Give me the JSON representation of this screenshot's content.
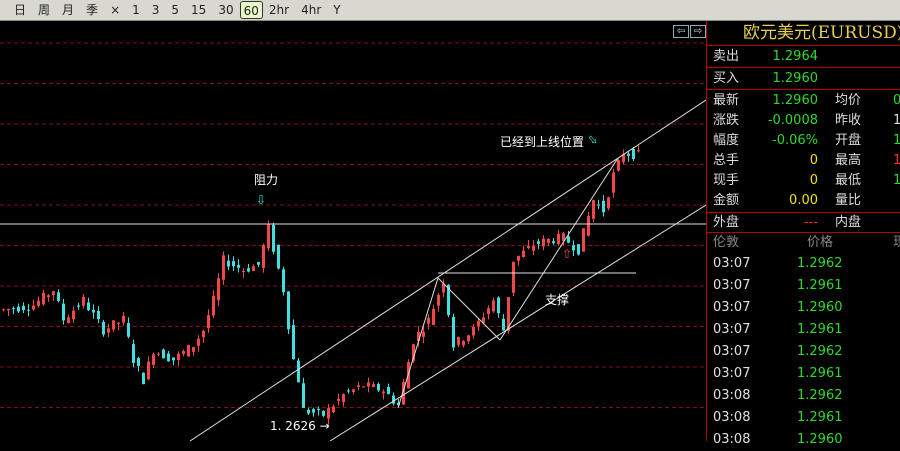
{
  "toolbar": {
    "items": [
      "日",
      "周",
      "月",
      "季",
      "×",
      "1",
      "3",
      "5",
      "15",
      "30",
      "60",
      "2hr",
      "4hr",
      "Y"
    ],
    "active": "60"
  },
  "nav": {
    "left": "⇦",
    "right": "⇨"
  },
  "annotations": {
    "resistance": "阻力",
    "at_upper_line": "已经到上线位置",
    "support": "支撑",
    "low_label": "1. 2626"
  },
  "panel": {
    "title": "欧元美元(EURUSD)",
    "sell": {
      "label": "卖出",
      "value": "1.2964"
    },
    "buy": {
      "label": "买入",
      "value": "1.2960"
    },
    "stats": [
      {
        "label": "最新",
        "value": "1.2960",
        "label2": "均价",
        "value2": "0"
      },
      {
        "label": "涨跌",
        "value": "-0.0008",
        "label2": "昨收",
        "value2": "1"
      },
      {
        "label": "幅度",
        "value": "-0.06%",
        "label2": "开盘",
        "value2": "1"
      },
      {
        "label": "总手",
        "value": "0",
        "label2": "最高",
        "value2": "1"
      },
      {
        "label": "现手",
        "value": "0",
        "label2": "最低",
        "value2": "1"
      },
      {
        "label": "金额",
        "value": "0.00",
        "label2": "量比",
        "value2": ""
      }
    ],
    "outer": {
      "label": "外盘",
      "value": "---",
      "label2": "内盘"
    },
    "ticks_header": {
      "time": "伦敦",
      "price": "价格",
      "vol": "现"
    },
    "ticks": [
      {
        "time": "03:07",
        "price": "1.2962"
      },
      {
        "time": "03:07",
        "price": "1.2961"
      },
      {
        "time": "03:07",
        "price": "1.2960"
      },
      {
        "time": "03:07",
        "price": "1.2961"
      },
      {
        "time": "03:07",
        "price": "1.2962"
      },
      {
        "time": "03:07",
        "price": "1.2961"
      },
      {
        "time": "03:08",
        "price": "1.2962"
      },
      {
        "time": "03:08",
        "price": "1.2961"
      },
      {
        "time": "03:08",
        "price": "1.2960"
      }
    ]
  },
  "chart_data": {
    "type": "candlestick",
    "period": "60",
    "low_marked": 1.2626,
    "last": 1.296,
    "path_keypoints": [
      [
        0,
        1.2767
      ],
      [
        6,
        1.2773
      ],
      [
        10,
        1.2792
      ],
      [
        12,
        1.2755
      ],
      [
        16,
        1.2779
      ],
      [
        20,
        1.2742
      ],
      [
        24,
        1.2755
      ],
      [
        26,
        1.2705
      ],
      [
        28,
        1.268
      ],
      [
        30,
        1.2717
      ],
      [
        34,
        1.2705
      ],
      [
        38,
        1.2723
      ],
      [
        40,
        1.2742
      ],
      [
        42,
        1.2779
      ],
      [
        44,
        1.2829
      ],
      [
        48,
        1.2817
      ],
      [
        51,
        1.2823
      ],
      [
        53,
        1.2869
      ],
      [
        56,
        1.2792
      ],
      [
        58,
        1.2705
      ],
      [
        59,
        1.268
      ],
      [
        60,
        1.2642
      ],
      [
        64,
        1.2636
      ],
      [
        68,
        1.2661
      ],
      [
        72,
        1.2673
      ],
      [
        76,
        1.2667
      ],
      [
        79,
        1.2648
      ],
      [
        82,
        1.2729
      ],
      [
        85,
        1.2754
      ],
      [
        88,
        1.2804
      ],
      [
        90,
        1.2723
      ],
      [
        94,
        1.2742
      ],
      [
        98,
        1.2779
      ],
      [
        100,
        1.2742
      ],
      [
        102,
        1.2829
      ],
      [
        106,
        1.2848
      ],
      [
        109,
        1.2854
      ],
      [
        112,
        1.2857
      ],
      [
        115,
        1.2842
      ],
      [
        118,
        1.2904
      ],
      [
        120,
        1.2891
      ],
      [
        122,
        1.2935
      ],
      [
        124,
        1.2963
      ],
      [
        127,
        1.296
      ]
    ],
    "colors": {
      "up": "#f04848",
      "down": "#40e0e0",
      "grid": "#8a1010",
      "lines": "#e0e0e0"
    }
  }
}
